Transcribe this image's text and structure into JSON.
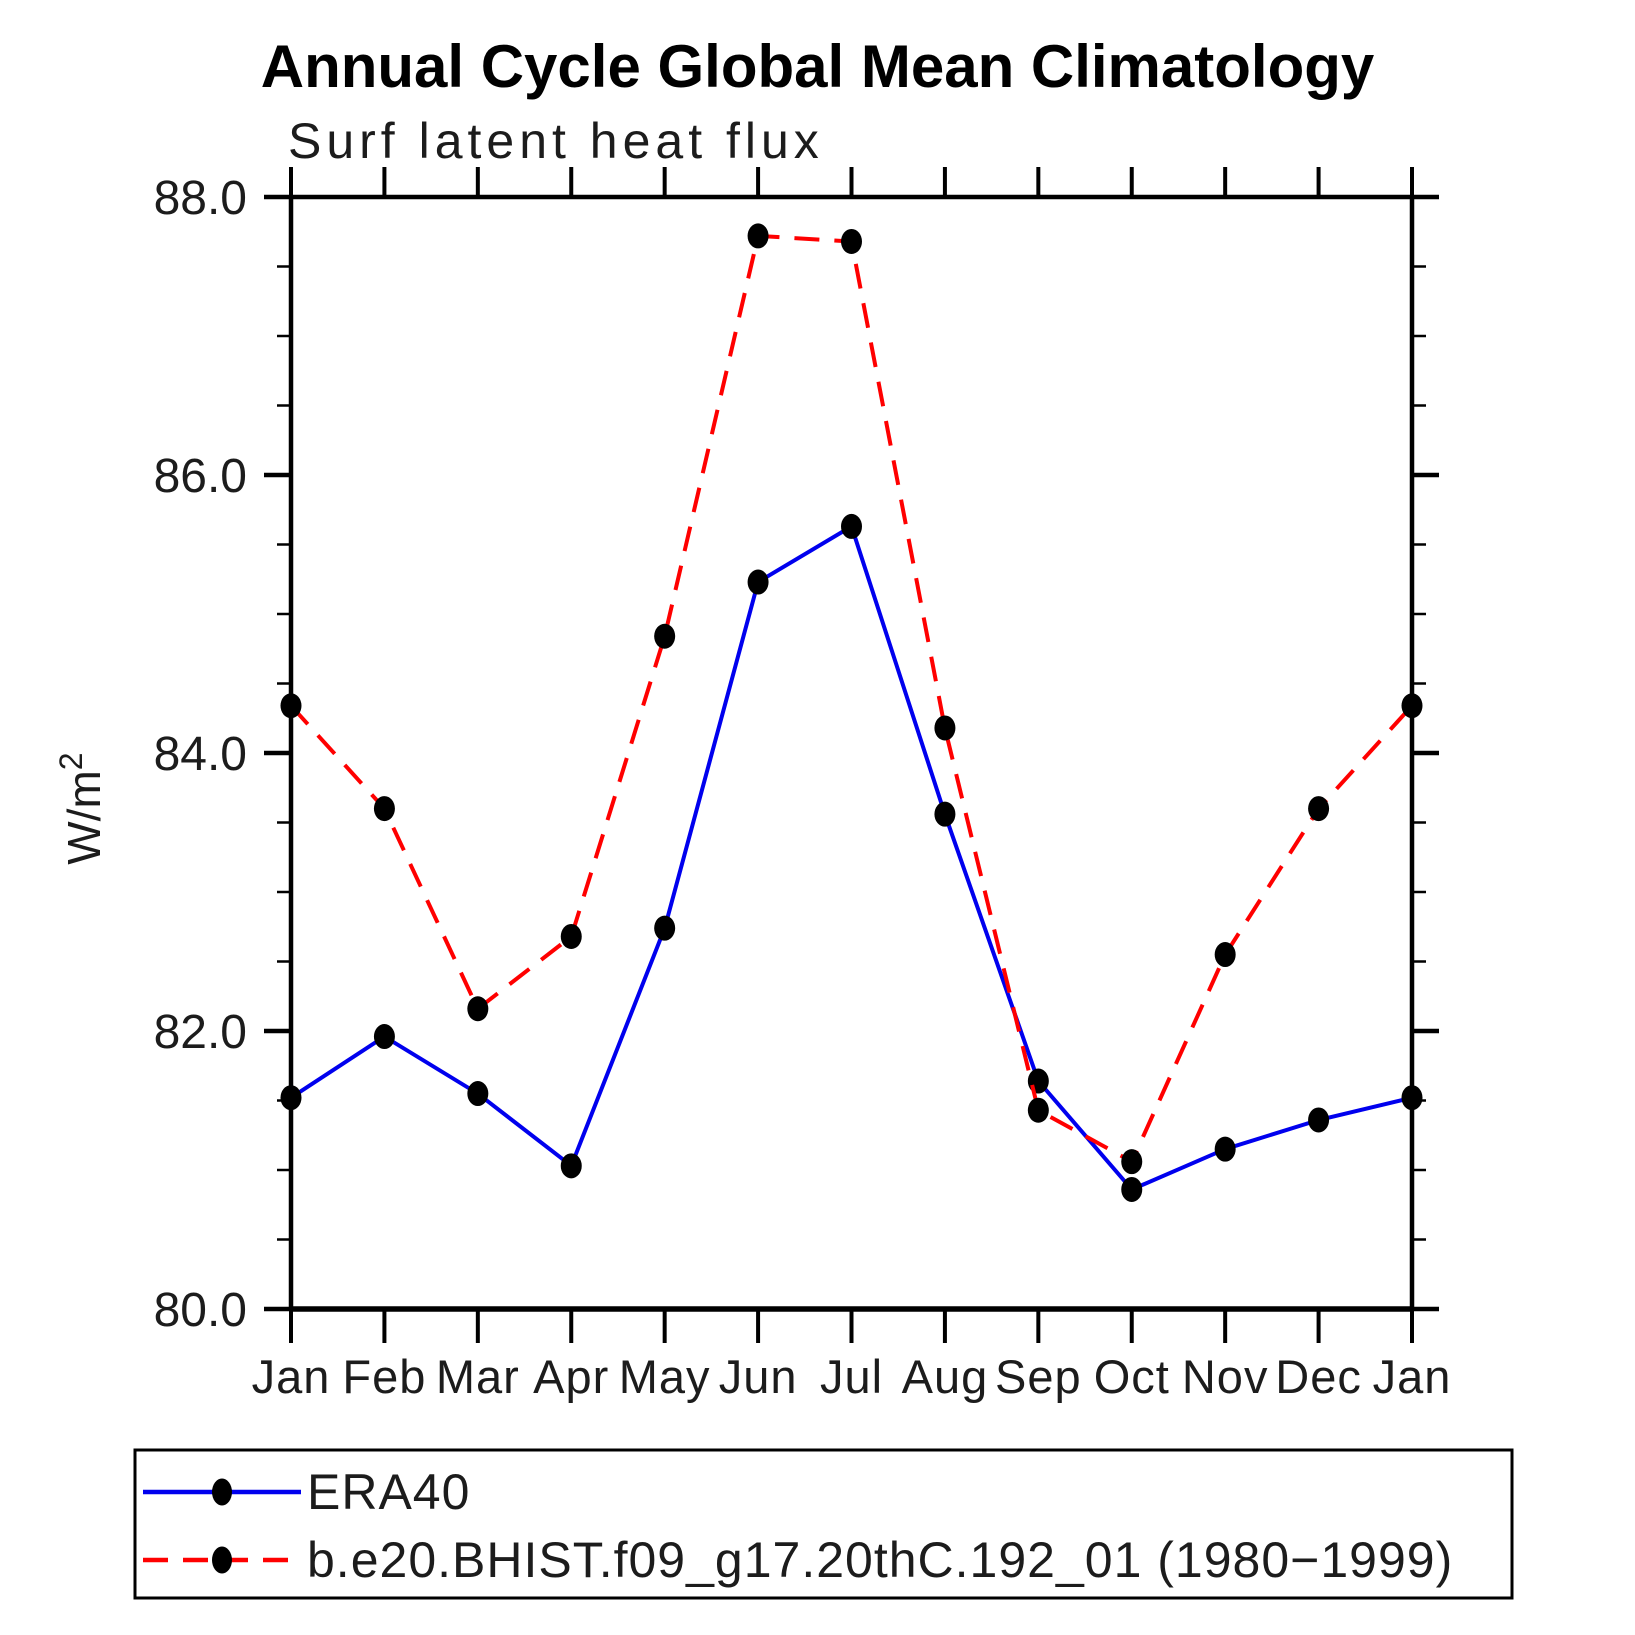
{
  "chart_data": {
    "type": "line",
    "title": "Annual Cycle Global Mean Climatology",
    "subtitle": "Surf latent heat flux",
    "ylabel": "W/m²",
    "ylabel_base": "W/m",
    "ylabel_sup": "2",
    "categories": [
      "Jan",
      "Feb",
      "Mar",
      "Apr",
      "May",
      "Jun",
      "Jul",
      "Aug",
      "Sep",
      "Oct",
      "Nov",
      "Dec",
      "Jan"
    ],
    "ylim": [
      80.0,
      88.0
    ],
    "yticks_major": [
      80.0,
      82.0,
      84.0,
      86.0,
      88.0
    ],
    "ytick_labels": [
      "80.0",
      "82.0",
      "84.0",
      "86.0",
      "88.0"
    ],
    "ytick_minor_step": 0.5,
    "grid": false,
    "legend_position": "bottom-left-box",
    "series": [
      {
        "name": "ERA40",
        "color": "#0000ee",
        "style": "solid",
        "marker": "filled-circle",
        "marker_color": "#000000",
        "values": [
          81.52,
          81.96,
          81.55,
          81.03,
          82.74,
          85.23,
          85.63,
          83.56,
          81.64,
          80.86,
          81.15,
          81.36,
          81.52
        ]
      },
      {
        "name": "b.e20.BHIST.f09_g17.20thC.192_01 (1980−1999)",
        "color": "#ff0000",
        "style": "dashed",
        "marker": "filled-circle",
        "marker_color": "#000000",
        "values": [
          84.34,
          83.6,
          82.16,
          82.68,
          84.84,
          87.72,
          87.68,
          84.18,
          81.43,
          81.06,
          82.55,
          83.6,
          84.34
        ]
      }
    ]
  }
}
